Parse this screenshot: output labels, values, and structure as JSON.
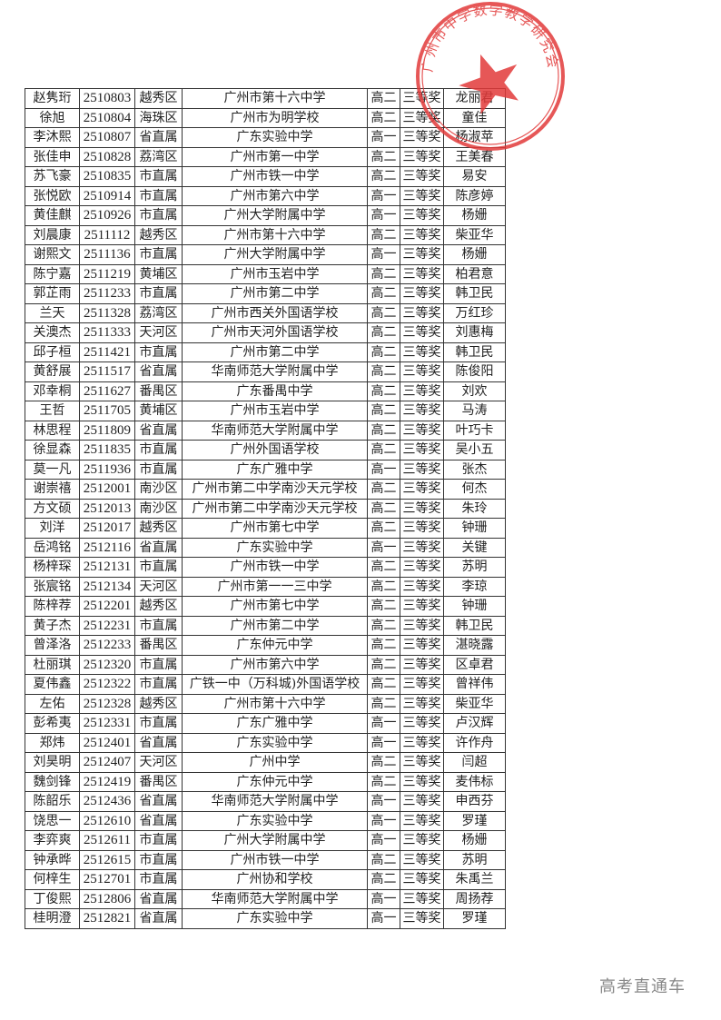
{
  "watermark": "高考直通车",
  "stamp": {
    "text": "广州市中学数学教学研究会",
    "color": "#e23a3a"
  },
  "rows": [
    [
      "赵隽珩",
      "2510803",
      "越秀区",
      "广州市第十六中学",
      "高二",
      "三等奖",
      "龙丽君"
    ],
    [
      "徐旭",
      "2510804",
      "海珠区",
      "广州市为明学校",
      "高二",
      "三等奖",
      "童佳"
    ],
    [
      "李沐熙",
      "2510807",
      "省直属",
      "广东实验中学",
      "高一",
      "三等奖",
      "杨淑苹"
    ],
    [
      "张佳申",
      "2510828",
      "荔湾区",
      "广州市第一中学",
      "高二",
      "三等奖",
      "王美春"
    ],
    [
      "苏飞豪",
      "2510835",
      "市直属",
      "广州市铁一中学",
      "高二",
      "三等奖",
      "易安"
    ],
    [
      "张悦欧",
      "2510914",
      "市直属",
      "广州市第六中学",
      "高一",
      "三等奖",
      "陈彦婷"
    ],
    [
      "黄佳麒",
      "2510926",
      "市直属",
      "广州大学附属中学",
      "高一",
      "三等奖",
      "杨姗"
    ],
    [
      "刘晨康",
      "2511112",
      "越秀区",
      "广州市第十六中学",
      "高二",
      "三等奖",
      "柴亚华"
    ],
    [
      "谢熙文",
      "2511136",
      "市直属",
      "广州大学附属中学",
      "高一",
      "三等奖",
      "杨姗"
    ],
    [
      "陈宁嘉",
      "2511219",
      "黄埔区",
      "广州市玉岩中学",
      "高二",
      "三等奖",
      "柏君意"
    ],
    [
      "郭芷雨",
      "2511233",
      "市直属",
      "广州市第二中学",
      "高二",
      "三等奖",
      "韩卫民"
    ],
    [
      "兰天",
      "2511328",
      "荔湾区",
      "广州市西关外国语学校",
      "高二",
      "三等奖",
      "万红珍"
    ],
    [
      "关澳杰",
      "2511333",
      "天河区",
      "广州市天河外国语学校",
      "高二",
      "三等奖",
      "刘惠梅"
    ],
    [
      "邱子桓",
      "2511421",
      "市直属",
      "广州市第二中学",
      "高二",
      "三等奖",
      "韩卫民"
    ],
    [
      "黄舒展",
      "2511517",
      "省直属",
      "华南师范大学附属中学",
      "高二",
      "三等奖",
      "陈俊阳"
    ],
    [
      "邓幸桐",
      "2511627",
      "番禺区",
      "广东番禺中学",
      "高二",
      "三等奖",
      "刘欢"
    ],
    [
      "王哲",
      "2511705",
      "黄埔区",
      "广州市玉岩中学",
      "高二",
      "三等奖",
      "马涛"
    ],
    [
      "林思程",
      "2511809",
      "省直属",
      "华南师范大学附属中学",
      "高二",
      "三等奖",
      "叶巧卡"
    ],
    [
      "徐显森",
      "2511835",
      "市直属",
      "广州外国语学校",
      "高二",
      "三等奖",
      "吴小五"
    ],
    [
      "莫一凡",
      "2511936",
      "市直属",
      "广东广雅中学",
      "高一",
      "三等奖",
      "张杰"
    ],
    [
      "谢崇禧",
      "2512001",
      "南沙区",
      "广州市第二中学南沙天元学校",
      "高二",
      "三等奖",
      "何杰"
    ],
    [
      "方文硕",
      "2512013",
      "南沙区",
      "广州市第二中学南沙天元学校",
      "高二",
      "三等奖",
      "朱玲"
    ],
    [
      "刘洋",
      "2512017",
      "越秀区",
      "广州市第七中学",
      "高二",
      "三等奖",
      "钟珊"
    ],
    [
      "岳鸿铭",
      "2512116",
      "省直属",
      "广东实验中学",
      "高一",
      "三等奖",
      "关键"
    ],
    [
      "杨梓琛",
      "2512131",
      "市直属",
      "广州市铁一中学",
      "高二",
      "三等奖",
      "苏明"
    ],
    [
      "张宸铭",
      "2512134",
      "天河区",
      "广州市第一一三中学",
      "高二",
      "三等奖",
      "李琼"
    ],
    [
      "陈梓荐",
      "2512201",
      "越秀区",
      "广州市第七中学",
      "高二",
      "三等奖",
      "钟珊"
    ],
    [
      "黄子杰",
      "2512231",
      "市直属",
      "广州市第二中学",
      "高二",
      "三等奖",
      "韩卫民"
    ],
    [
      "曾泽洛",
      "2512233",
      "番禺区",
      "广东仲元中学",
      "高二",
      "三等奖",
      "湛晓露"
    ],
    [
      "杜丽琪",
      "2512320",
      "市直属",
      "广州市第六中学",
      "高二",
      "三等奖",
      "区卓君"
    ],
    [
      "夏伟鑫",
      "2512322",
      "市直属",
      "广铁一中（万科城)外国语学校",
      "高二",
      "三等奖",
      "曾祥伟"
    ],
    [
      "左佑",
      "2512328",
      "越秀区",
      "广州市第十六中学",
      "高二",
      "三等奖",
      "柴亚华"
    ],
    [
      "彭希夷",
      "2512331",
      "市直属",
      "广东广雅中学",
      "高一",
      "三等奖",
      "卢汉辉"
    ],
    [
      "郑炜",
      "2512401",
      "省直属",
      "广东实验中学",
      "高一",
      "三等奖",
      "许作舟"
    ],
    [
      "刘昊明",
      "2512407",
      "天河区",
      "广州中学",
      "高二",
      "三等奖",
      "闫超"
    ],
    [
      "魏剑锋",
      "2512419",
      "番禺区",
      "广东仲元中学",
      "高二",
      "三等奖",
      "麦伟标"
    ],
    [
      "陈韶乐",
      "2512436",
      "省直属",
      "华南师范大学附属中学",
      "高一",
      "三等奖",
      "申西芬"
    ],
    [
      "饶思一",
      "2512610",
      "省直属",
      "广东实验中学",
      "高一",
      "三等奖",
      "罗瑾"
    ],
    [
      "李弈爽",
      "2512611",
      "市直属",
      "广州大学附属中学",
      "高一",
      "三等奖",
      "杨姗"
    ],
    [
      "钟承晔",
      "2512615",
      "市直属",
      "广州市铁一中学",
      "高二",
      "三等奖",
      "苏明"
    ],
    [
      "何梓生",
      "2512701",
      "市直属",
      "广州协和学校",
      "高二",
      "三等奖",
      "朱禹兰"
    ],
    [
      "丁俊熙",
      "2512806",
      "省直属",
      "华南师范大学附属中学",
      "高一",
      "三等奖",
      "周扬荐"
    ],
    [
      "桂明澄",
      "2512821",
      "省直属",
      "广东实验中学",
      "高一",
      "三等奖",
      "罗瑾"
    ]
  ]
}
